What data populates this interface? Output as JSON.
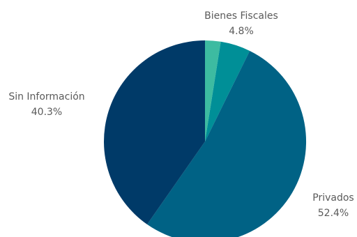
{
  "chart_data": {
    "type": "pie",
    "title": "",
    "start_angle_deg": 0,
    "direction": "clockwise",
    "slices": [
      {
        "label": "",
        "value": 2.5,
        "value_label": "",
        "color": "#3dbba1"
      },
      {
        "label": "Bienes Fiscales",
        "value": 4.8,
        "value_label": "4.8%",
        "color": "#008f97"
      },
      {
        "label": "Privados",
        "value": 52.4,
        "value_label": "52.4%",
        "color": "#006285"
      },
      {
        "label": "Sin Información",
        "value": 40.3,
        "value_label": "40.3%",
        "color": "#003a68"
      }
    ]
  }
}
